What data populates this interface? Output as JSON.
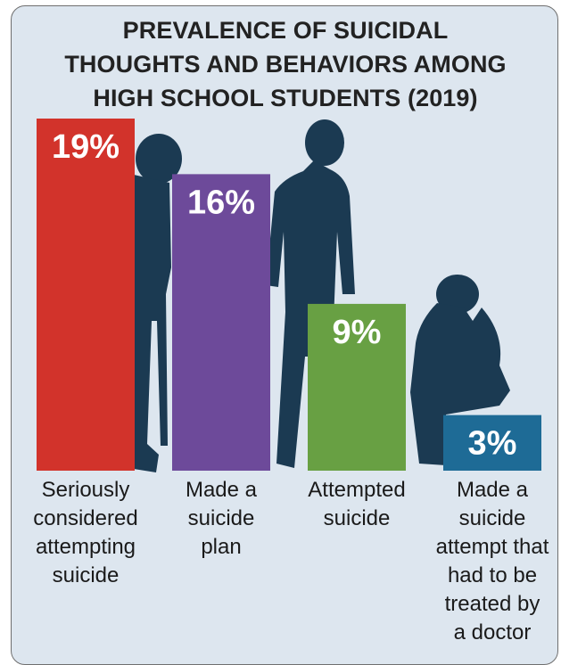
{
  "chart_data": {
    "type": "bar",
    "title_lines": [
      "PREVALENCE OF SUICIDAL",
      "THOUGHTS AND BEHAVIORS AMONG",
      "HIGH SCHOOL STUDENTS (2019)"
    ],
    "categories": [
      [
        "Seriously",
        "considered",
        "attempting",
        "suicide"
      ],
      [
        "Made a",
        "suicide",
        "plan"
      ],
      [
        "Attempted",
        "suicide"
      ],
      [
        "Made a",
        "suicide",
        "attempt that",
        "had to be",
        "treated by",
        "a doctor"
      ]
    ],
    "values": [
      19,
      16,
      9,
      3
    ],
    "value_labels": [
      "19%",
      "16%",
      "9%",
      "3%"
    ],
    "colors": [
      "#d2332b",
      "#6d4a9a",
      "#68a043",
      "#1e6b96"
    ],
    "ylim": [
      0,
      19
    ]
  }
}
